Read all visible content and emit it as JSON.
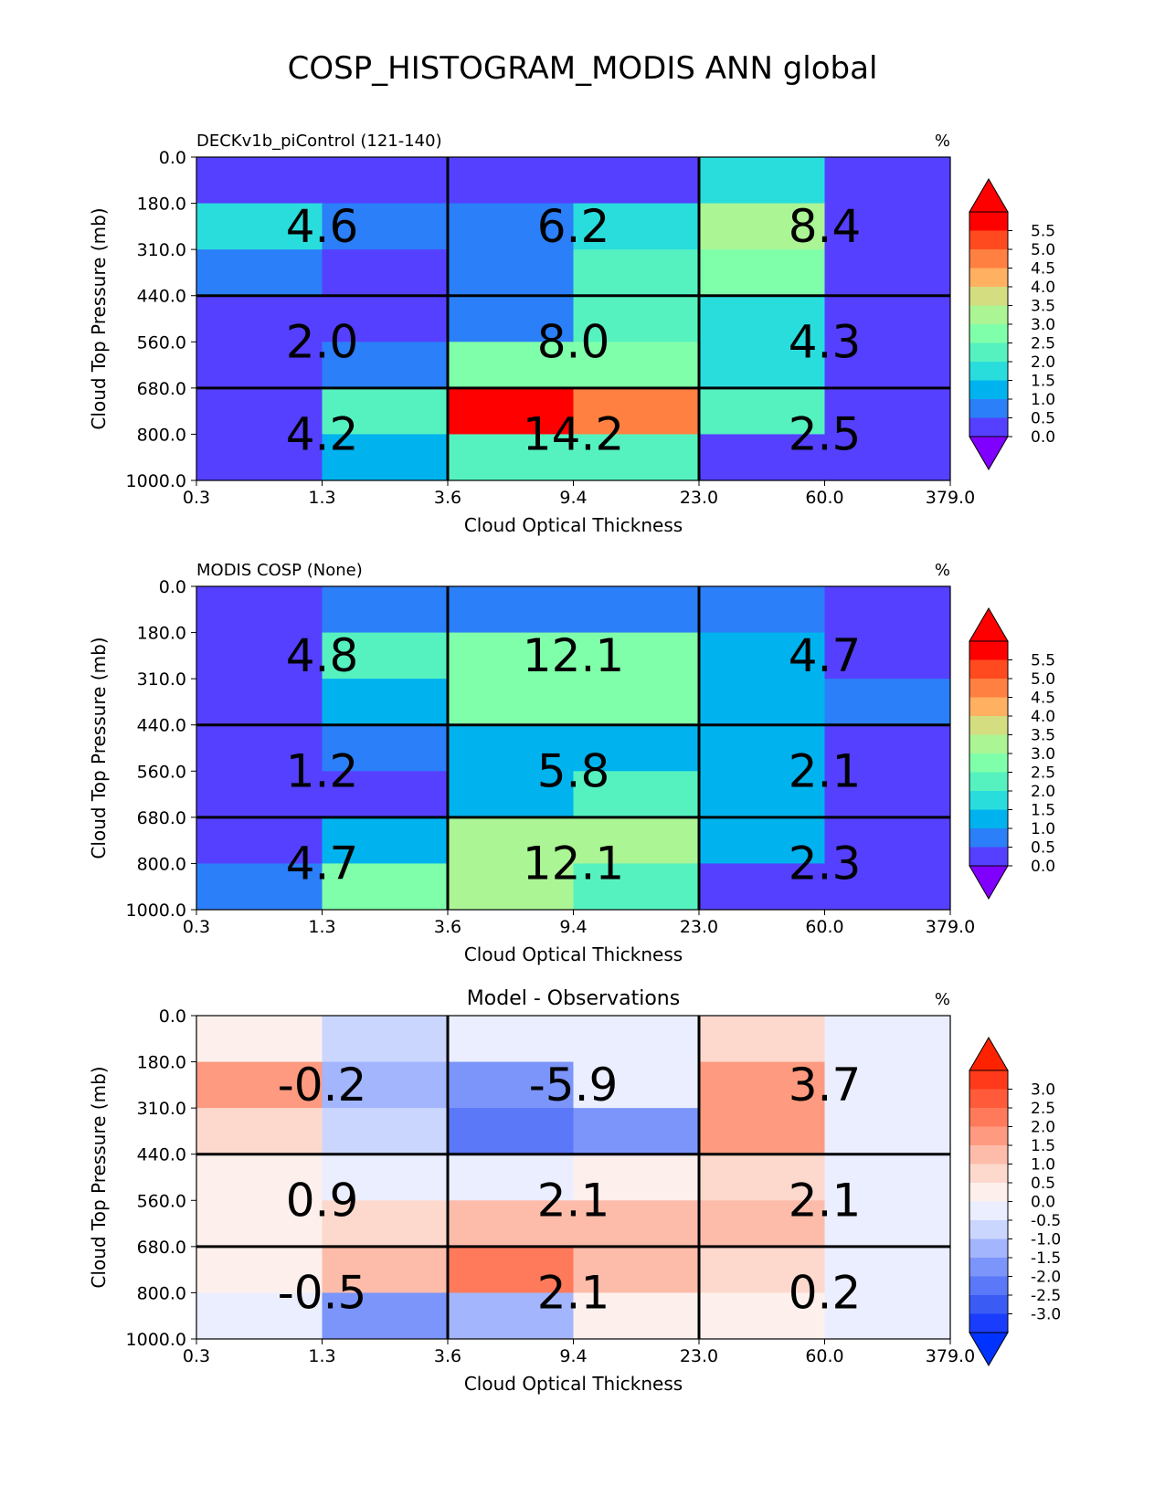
{
  "figure": {
    "title": "COSP_HISTOGRAM_MODIS ANN global"
  },
  "chart_data": [
    {
      "type": "heatmap",
      "panel_title": "DECKv1b_piControl (121-140)",
      "unit_label": "%",
      "xlabel": "Cloud Optical Thickness",
      "ylabel": "Cloud Top Pressure (mb)",
      "x_ticks": [
        "0.3",
        "1.3",
        "3.6",
        "9.4",
        "23.0",
        "60.0",
        "379.0"
      ],
      "y_ticks": [
        "0.0",
        "180.0",
        "310.0",
        "440.0",
        "560.0",
        "680.0",
        "800.0",
        "1000.0"
      ],
      "colorbar_labels": [
        "5.5",
        "5.0",
        "4.5",
        "4.0",
        "3.5",
        "3.0",
        "2.5",
        "2.0",
        "1.5",
        "1.0",
        "0.5",
        "0.0"
      ],
      "colorbar_colors": [
        "#ff0000",
        "#ff4a1f",
        "#ff8040",
        "#ffb060",
        "#d4dd80",
        "#abf595",
        "#80ffaa",
        "#55f2c0",
        "#2adddd",
        "#00b3ee",
        "#2b7ff8",
        "#5540ff"
      ],
      "colorbar_under": "#8000ff",
      "colorbar_over": "#ff0000",
      "colorbar_min": 0,
      "colorbar_max": 6,
      "values": [
        [
          0.1,
          0.1,
          0.3,
          0.4,
          1.6,
          0.2
        ],
        [
          2.0,
          0.8,
          0.8,
          2.0,
          3.1,
          0.2
        ],
        [
          0.9,
          0.3,
          0.8,
          2.1,
          2.7,
          0.2
        ],
        [
          0.4,
          0.2,
          0.9,
          2.2,
          2.0,
          0.3
        ],
        [
          0.3,
          0.9,
          2.6,
          2.6,
          2.0,
          0.3
        ],
        [
          0.3,
          2.3,
          5.9,
          4.7,
          2.1,
          0.2
        ],
        [
          0.3,
          1.4,
          2.2,
          2.2,
          0.3,
          0.2
        ]
      ],
      "group_totals": [
        [
          "4.6",
          "6.2",
          "8.4"
        ],
        [
          "2.0",
          "8.0",
          "4.3"
        ],
        [
          "4.2",
          "14.2",
          "2.5"
        ]
      ]
    },
    {
      "type": "heatmap",
      "panel_title": "MODIS COSP (None)",
      "unit_label": "%",
      "xlabel": "Cloud Optical Thickness",
      "ylabel": "Cloud Top Pressure (mb)",
      "x_ticks": [
        "0.3",
        "1.3",
        "3.6",
        "9.4",
        "23.0",
        "60.0",
        "379.0"
      ],
      "y_ticks": [
        "0.0",
        "180.0",
        "310.0",
        "440.0",
        "560.0",
        "680.0",
        "800.0",
        "1000.0"
      ],
      "colorbar_labels": [
        "5.5",
        "5.0",
        "4.5",
        "4.0",
        "3.5",
        "3.0",
        "2.5",
        "2.0",
        "1.5",
        "1.0",
        "0.5",
        "0.0"
      ],
      "colorbar_colors": [
        "#ff0000",
        "#ff4a1f",
        "#ff8040",
        "#ffb060",
        "#d4dd80",
        "#abf595",
        "#80ffaa",
        "#55f2c0",
        "#2adddd",
        "#00b3ee",
        "#2b7ff8",
        "#5540ff"
      ],
      "colorbar_under": "#8000ff",
      "colorbar_over": "#ff0000",
      "colorbar_min": 0,
      "colorbar_max": 6,
      "values": [
        [
          0.3,
          0.8,
          0.8,
          0.8,
          0.8,
          0.3
        ],
        [
          0.3,
          2.2,
          2.7,
          2.7,
          1.2,
          0.3
        ],
        [
          0.3,
          1.3,
          2.7,
          2.6,
          1.3,
          0.8
        ],
        [
          0.3,
          0.8,
          1.3,
          1.3,
          1.3,
          0.3
        ],
        [
          0.3,
          0.3,
          1.3,
          2.2,
          1.3,
          0.3
        ],
        [
          0.3,
          1.3,
          3.3,
          3.3,
          1.2,
          0.3
        ],
        [
          0.8,
          2.7,
          3.2,
          2.2,
          0.3,
          0.3
        ]
      ],
      "group_totals": [
        [
          "4.8",
          "12.1",
          "4.7"
        ],
        [
          "1.2",
          "5.8",
          "2.1"
        ],
        [
          "4.7",
          "12.1",
          "2.3"
        ]
      ]
    },
    {
      "type": "heatmap",
      "panel_title": "Model - Observations",
      "unit_label": "%",
      "xlabel": "Cloud Optical Thickness",
      "ylabel": "Cloud Top Pressure (mb)",
      "x_ticks": [
        "0.3",
        "1.3",
        "3.6",
        "9.4",
        "23.0",
        "60.0",
        "379.0"
      ],
      "y_ticks": [
        "0.0",
        "180.0",
        "310.0",
        "440.0",
        "560.0",
        "680.0",
        "800.0",
        "1000.0"
      ],
      "colorbar_labels": [
        "3.0",
        "2.5",
        "2.0",
        "1.5",
        "1.0",
        "0.5",
        "0.0",
        "-0.5",
        "-1.0",
        "-1.5",
        "-2.0",
        "-2.5",
        "-3.0"
      ],
      "colorbar_colors": [
        "#ff3a1a",
        "#ff5a3a",
        "#ff7a5a",
        "#fe9a80",
        "#fdbcaa",
        "#fcd8cd",
        "#fdf0ec",
        "#eaeeff",
        "#cbd6ff",
        "#a3b5fc",
        "#7c95fa",
        "#5a78f7",
        "#3a5cf5",
        "#1a3cfd"
      ],
      "colorbar_under": "#0033ff",
      "colorbar_over": "#ff2200",
      "colorbar_min": -3.5,
      "colorbar_max": 3.5,
      "values": [
        [
          0.1,
          -0.7,
          -0.4,
          -0.4,
          0.7,
          -0.1
        ],
        [
          1.7,
          -1.4,
          -1.9,
          -0.4,
          1.9,
          -0.1
        ],
        [
          0.6,
          -0.8,
          -2.3,
          -1.6,
          1.7,
          -0.1
        ],
        [
          0.1,
          -0.3,
          -0.3,
          0.1,
          0.8,
          -0.1
        ],
        [
          0.1,
          0.7,
          1.3,
          1.3,
          1.4,
          -0.1
        ],
        [
          0.1,
          1.1,
          2.4,
          1.3,
          0.8,
          -0.1
        ],
        [
          -0.4,
          -1.8,
          -1.3,
          0.1,
          0.1,
          -0.1
        ]
      ],
      "group_totals": [
        [
          "-0.2",
          "-5.9",
          "3.7"
        ],
        [
          "0.9",
          "2.1",
          "2.1"
        ],
        [
          "-0.5",
          "2.1",
          "0.2"
        ]
      ]
    }
  ]
}
